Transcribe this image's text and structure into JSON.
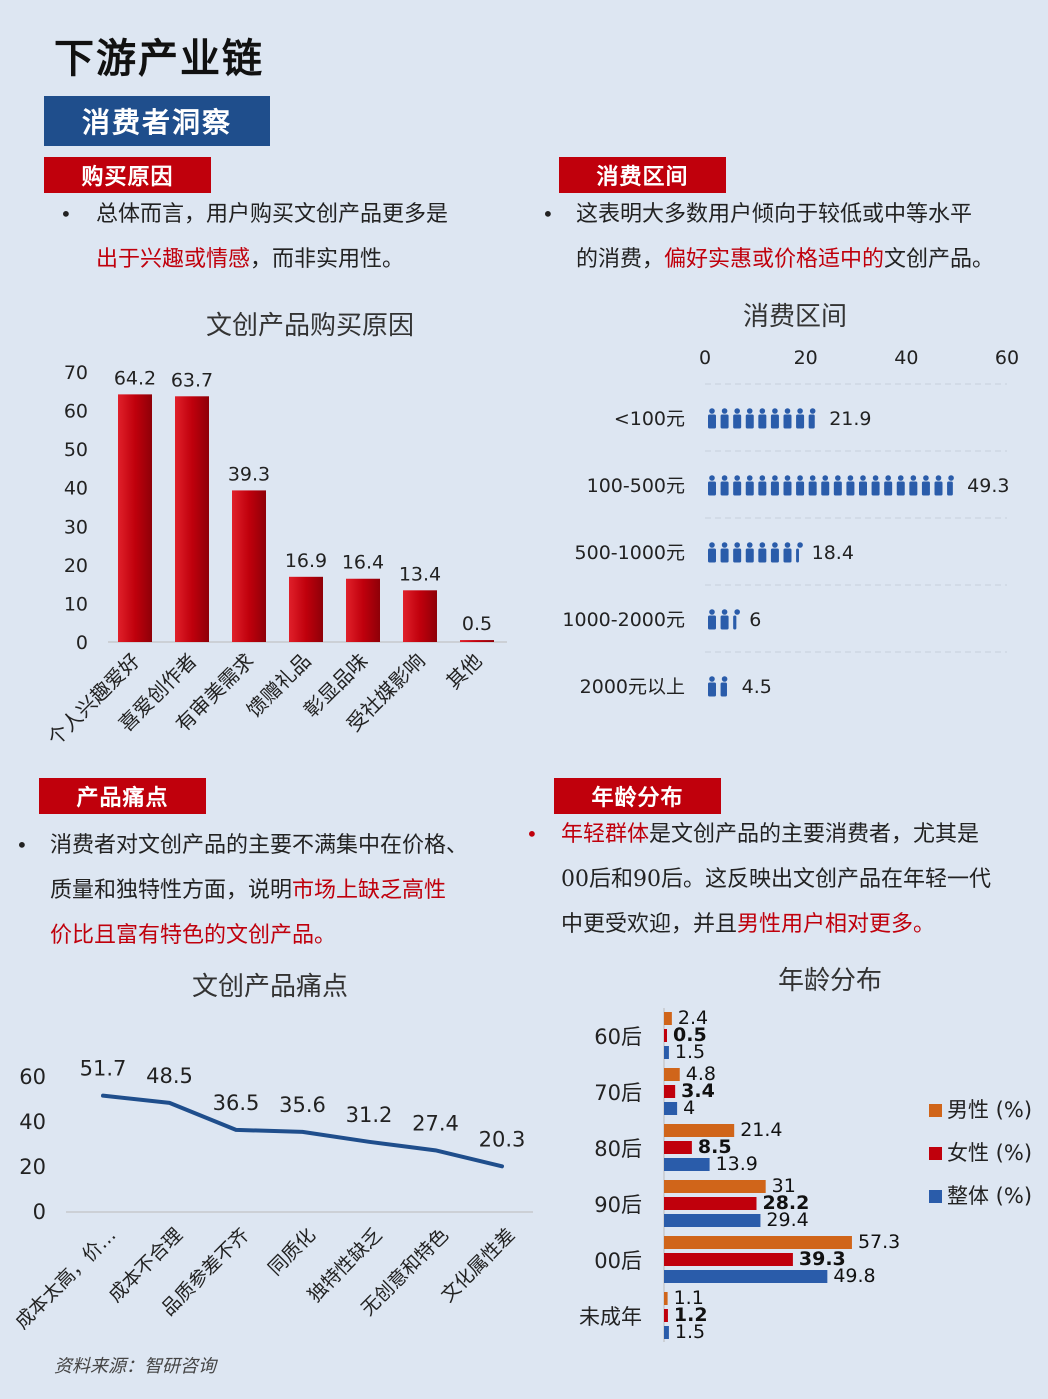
{
  "page": {
    "title": "下游产业链",
    "banner": "消费者洞察",
    "source": "资料来源：智研咨询"
  },
  "sections": {
    "purchase": {
      "tag": "购买原因",
      "bullet": "•",
      "text1": "总体而言，用户购买文创产品更多是",
      "text2_hl": "出于兴趣或情感",
      "text2_rest": "，而非实用性。"
    },
    "spending": {
      "tag": "消费区间",
      "bullet": "•",
      "text1": "这表明大多数用户倾向于较低或中等水平",
      "text2_a": "的消费，",
      "text2_hl": "偏好实惠或价格适中的",
      "text2_b": "文创产品。"
    },
    "pain": {
      "tag": "产品痛点",
      "bullet": "•",
      "text1": "消费者对文创产品的主要不满集中在价格、",
      "text2_a": "质量和独特性方面，说明",
      "text2_hl": "市场上缺乏高性",
      "text3_hl": "价比且富有特色的文创产品。"
    },
    "age": {
      "tag": "年龄分布",
      "bullet": "•",
      "text1_hl": "年轻群体",
      "text1_rest": "是文创产品的主要消费者，尤其是",
      "text2": "00后和90后。这反映出文创产品在年轻一代",
      "text3_a": "中更受欢迎，并且",
      "text3_hl": "男性用户相对更多。"
    }
  },
  "colors": {
    "red": "#c0000c",
    "navy": "#1f4e8c",
    "orange": "#d0651a",
    "blue": "#2a5caa"
  },
  "chart_data": [
    {
      "type": "bar",
      "title": "文创产品购买原因",
      "categories": [
        "个人兴趣爱好",
        "喜爱创作者",
        "有审美需求",
        "馈赠礼品",
        "彰显品味",
        "受社媒影响",
        "其他"
      ],
      "values": [
        64.2,
        63.7,
        39.3,
        16.9,
        16.4,
        13.4,
        0.5
      ],
      "yticks": [
        0,
        10,
        20,
        30,
        40,
        50,
        60,
        70
      ],
      "ylim": [
        0,
        70
      ]
    },
    {
      "type": "bar",
      "orientation": "horizontal-pictogram",
      "title": "消费区间",
      "categories": [
        "<100元",
        "100-500元",
        "500-1000元",
        "1000-2000元",
        "2000元以上"
      ],
      "values": [
        21.9,
        49.3,
        18.4,
        6,
        4.5
      ],
      "xticks": [
        0,
        20,
        40,
        60
      ],
      "xlim": [
        0,
        60
      ]
    },
    {
      "type": "line",
      "title": "文创产品痛点",
      "categories": [
        "成本太高，价…",
        "成本不合理",
        "品质参差不齐",
        "同质化",
        "独特性缺乏",
        "无创意和特色",
        "文化属性差"
      ],
      "values": [
        51.7,
        48.5,
        36.5,
        35.6,
        31.2,
        27.4,
        20.3
      ],
      "yticks": [
        0,
        20,
        40,
        60
      ],
      "ylim": [
        0,
        60
      ]
    },
    {
      "type": "bar",
      "orientation": "horizontal",
      "title": "年龄分布",
      "categories": [
        "60后",
        "70后",
        "80后",
        "90后",
        "00后",
        "未成年"
      ],
      "series": [
        {
          "name": "男性 (%)",
          "values": [
            2.4,
            4.8,
            21.4,
            31,
            57.3,
            1.1
          ]
        },
        {
          "name": "女性 (%)",
          "values": [
            0.5,
            3.4,
            8.5,
            28.2,
            39.3,
            1.2
          ]
        },
        {
          "name": "整体 (%)",
          "values": [
            1.5,
            4,
            13.9,
            29.4,
            49.8,
            1.5
          ]
        }
      ],
      "legend": "right"
    }
  ]
}
